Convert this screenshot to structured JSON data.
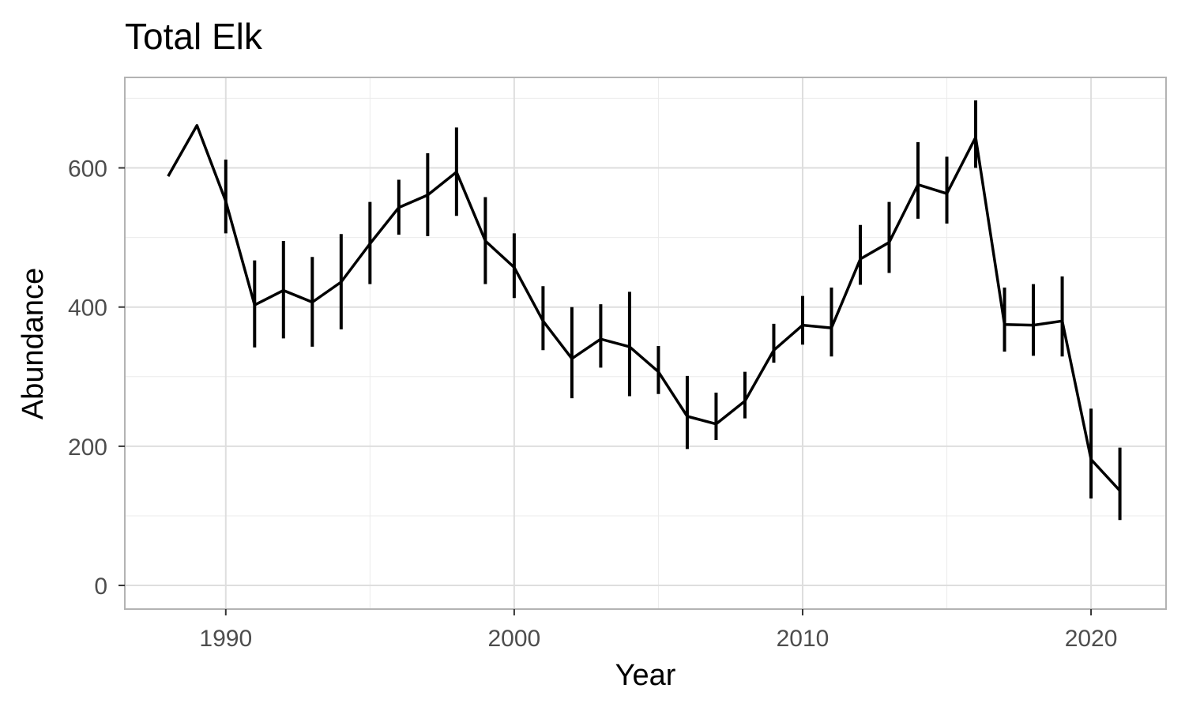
{
  "chart_data": {
    "type": "line",
    "title": "Total Elk",
    "xlabel": "Year",
    "ylabel": "Abundance",
    "xlim": [
      1986.5,
      2022.6
    ],
    "ylim": [
      -34,
      730
    ],
    "x_ticks": [
      1990,
      2000,
      2010,
      2020
    ],
    "y_ticks": [
      0,
      200,
      400,
      600
    ],
    "grid": true,
    "series": [
      {
        "x": [
          1988,
          1989,
          1990,
          1991,
          1992,
          1993,
          1994,
          1995,
          1996,
          1997,
          1998,
          1999,
          2000,
          2001,
          2002,
          2003,
          2004,
          2005,
          2006,
          2007,
          2008,
          2009,
          2010,
          2011,
          2012,
          2013,
          2014,
          2015,
          2016,
          2017,
          2018,
          2019,
          2020,
          2021
        ],
        "y": [
          588,
          661,
          552,
          403,
          424,
          407,
          436,
          491,
          543,
          561,
          594,
          495,
          457,
          380,
          326,
          354,
          343,
          307,
          243,
          232,
          265,
          338,
          374,
          370,
          469,
          493,
          576,
          563,
          644,
          375,
          374,
          380,
          181,
          136
        ],
        "lower": [
          null,
          null,
          506,
          342,
          355,
          343,
          368,
          433,
          504,
          502,
          531,
          433,
          413,
          338,
          269,
          313,
          272,
          275,
          196,
          209,
          240,
          320,
          346,
          329,
          432,
          449,
          527,
          520,
          600,
          336,
          330,
          329,
          125,
          94
        ],
        "upper": [
          null,
          null,
          612,
          467,
          495,
          472,
          505,
          551,
          583,
          621,
          658,
          558,
          506,
          430,
          400,
          404,
          422,
          344,
          301,
          277,
          307,
          376,
          416,
          428,
          518,
          551,
          637,
          616,
          697,
          428,
          433,
          444,
          254,
          198
        ]
      }
    ]
  }
}
